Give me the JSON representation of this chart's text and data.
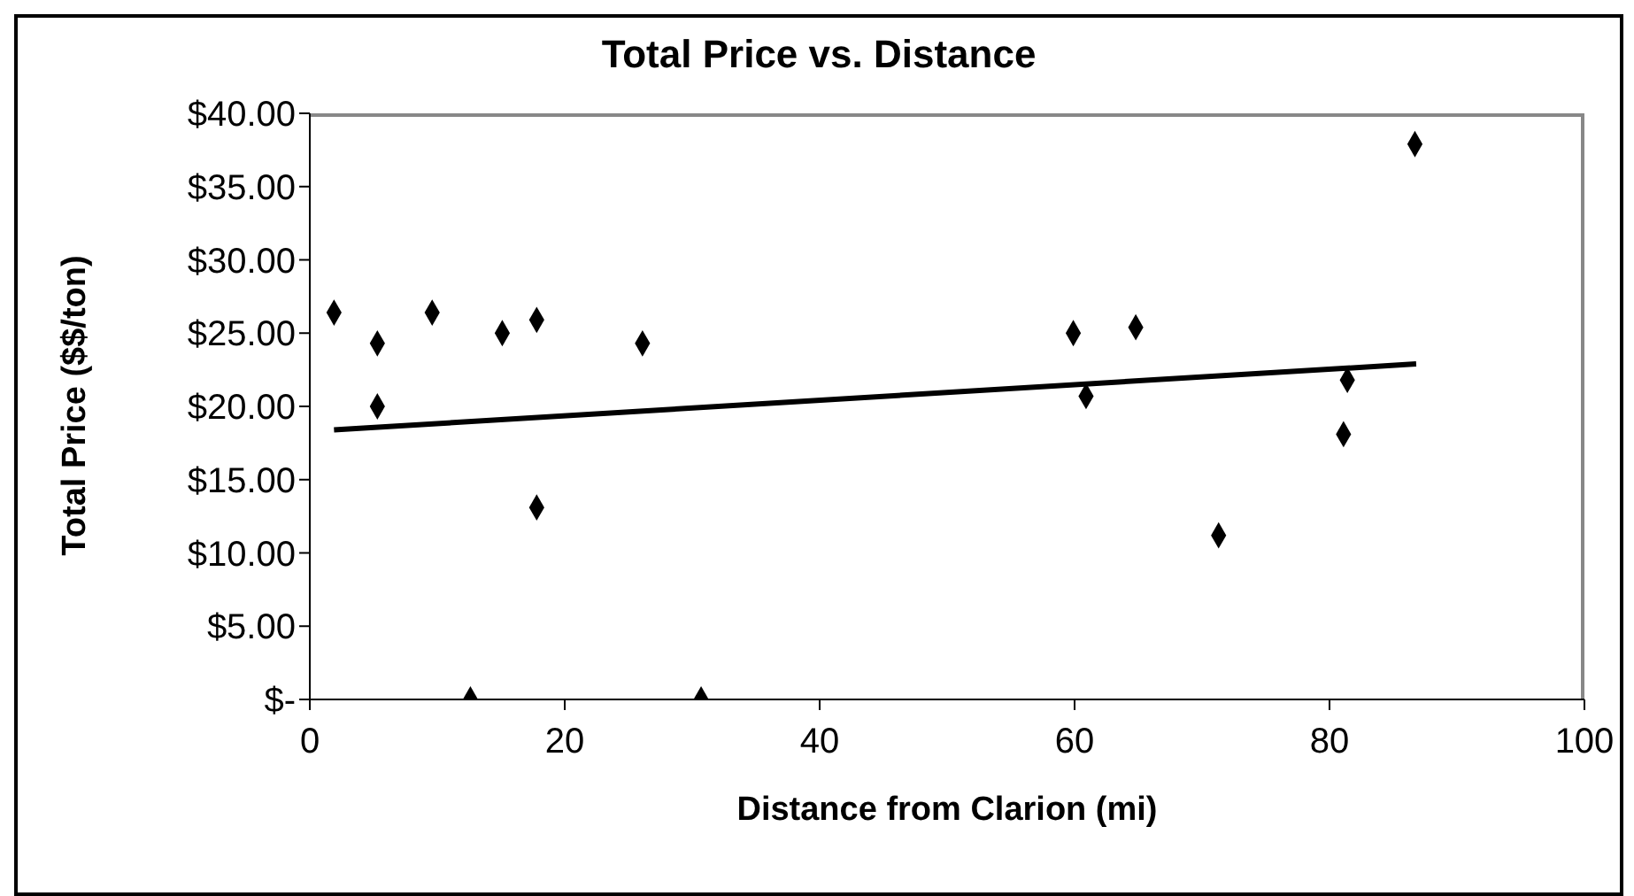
{
  "chart_data": {
    "type": "scatter",
    "title": "Total Price vs. Distance",
    "xlabel": "Distance from Clarion (mi)",
    "ylabel": "Total Price ($$/ton)",
    "xlim": [
      0,
      100
    ],
    "xticks": [
      0,
      20,
      40,
      60,
      80,
      100
    ],
    "ylim": [
      0,
      40
    ],
    "yticks": [
      {
        "value": 0,
        "label": "$-"
      },
      {
        "value": 5,
        "label": "$5.00"
      },
      {
        "value": 10,
        "label": "$10.00"
      },
      {
        "value": 15,
        "label": "$15.00"
      },
      {
        "value": 20,
        "label": "$20.00"
      },
      {
        "value": 25,
        "label": "$25.00"
      },
      {
        "value": 30,
        "label": "$30.00"
      },
      {
        "value": 35,
        "label": "$35.00"
      },
      {
        "value": 40,
        "label": "$40.00"
      }
    ],
    "marker": "diamond",
    "series": [
      {
        "color": "#000000",
        "x": [
          1.9,
          5.3,
          5.3,
          9.6,
          12.6,
          15.1,
          17.8,
          17.8,
          26.1,
          30.7,
          59.9,
          60.9,
          64.8,
          71.3,
          81.1,
          81.4,
          86.7
        ],
        "values": [
          26.4,
          24.3,
          20.0,
          26.4,
          0,
          25.0,
          25.9,
          13.1,
          24.3,
          0,
          25.0,
          20.7,
          25.4,
          11.2,
          18.1,
          21.8,
          37.9
        ]
      },
      {
        "type": "line",
        "color": "#000000",
        "marker": "none",
        "x": [
          1.9,
          86.8
        ],
        "values": [
          18.4,
          22.9
        ]
      }
    ]
  }
}
